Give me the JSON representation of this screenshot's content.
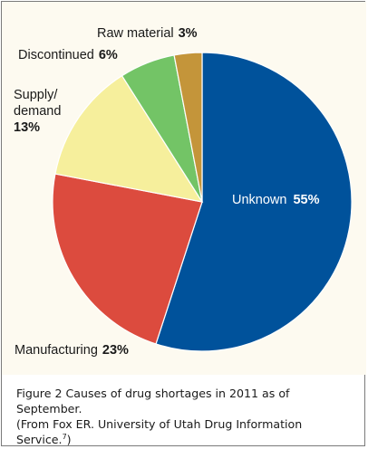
{
  "chart_data": {
    "type": "pie",
    "title": "",
    "slices": [
      {
        "label": "Unknown",
        "value": 55,
        "color": "#00529b"
      },
      {
        "label": "Manufacturing",
        "value": 23,
        "color": "#dc4b3e"
      },
      {
        "label": "Supply/ demand",
        "value": 13,
        "color": "#f6ef9c"
      },
      {
        "label": "Discontinued",
        "value": 6,
        "color": "#73c466"
      },
      {
        "label": "Raw material",
        "value": 3,
        "color": "#c4953a"
      }
    ]
  },
  "labels": {
    "unknown": {
      "name": "Unknown",
      "pct": "55%"
    },
    "manufacturing": {
      "name": "Manufacturing",
      "pct": "23%"
    },
    "supply": {
      "line1": "Supply/",
      "line2": "demand",
      "pct": "13%"
    },
    "discontinued": {
      "name": "Discontinued",
      "pct": "6%"
    },
    "raw": {
      "name": "Raw material",
      "pct": "3%"
    }
  },
  "caption": {
    "line1": "Figure 2  Causes of drug shortages in 2011 as of September.",
    "line2": "(From Fox ER. University of Utah Drug Information",
    "line3_prefix": "Service.",
    "line3_sup": "7",
    "line3_suffix": ")"
  }
}
